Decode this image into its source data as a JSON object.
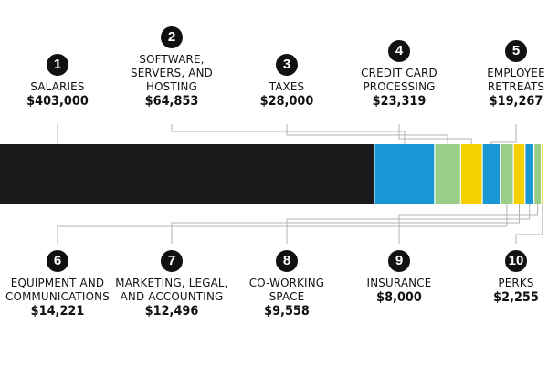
{
  "chart_data": {
    "type": "bar",
    "orientation": "horizontal-stacked",
    "title": "",
    "colors": [
      "#1a1a1a",
      "#1a96d4",
      "#9acd85",
      "#f5d000",
      "#1a96d4",
      "#9acd85",
      "#f5d000",
      "#1a96d4",
      "#9acd85",
      "#f5d000"
    ],
    "items": [
      {
        "rank": "1",
        "label": "SALARIES",
        "amount": "$403,000",
        "value": 403000
      },
      {
        "rank": "2",
        "label": "SOFTWARE, SERVERS, AND HOSTING",
        "amount": "$64,853",
        "value": 64853
      },
      {
        "rank": "3",
        "label": "TAXES",
        "amount": "$28,000",
        "value": 28000
      },
      {
        "rank": "4",
        "label": "CREDIT CARD PROCESSING",
        "amount": "$23,319",
        "value": 23319
      },
      {
        "rank": "5",
        "label": "EMPLOYEE RETREATS",
        "amount": "$19,267",
        "value": 19267
      },
      {
        "rank": "6",
        "label": "EQUIPMENT AND COMMUNICATIONS",
        "amount": "$14,221",
        "value": 14221
      },
      {
        "rank": "7",
        "label": "MARKETING, LEGAL, AND ACCOUNTING",
        "amount": "$12,496",
        "value": 12496
      },
      {
        "rank": "8",
        "label": "CO-WORKING SPACE",
        "amount": "$9,558",
        "value": 9558
      },
      {
        "rank": "9",
        "label": "INSURANCE",
        "amount": "$8,000",
        "value": 8000
      },
      {
        "rank": "10",
        "label": "PERKS",
        "amount": "$2,255",
        "value": 2255
      }
    ]
  }
}
